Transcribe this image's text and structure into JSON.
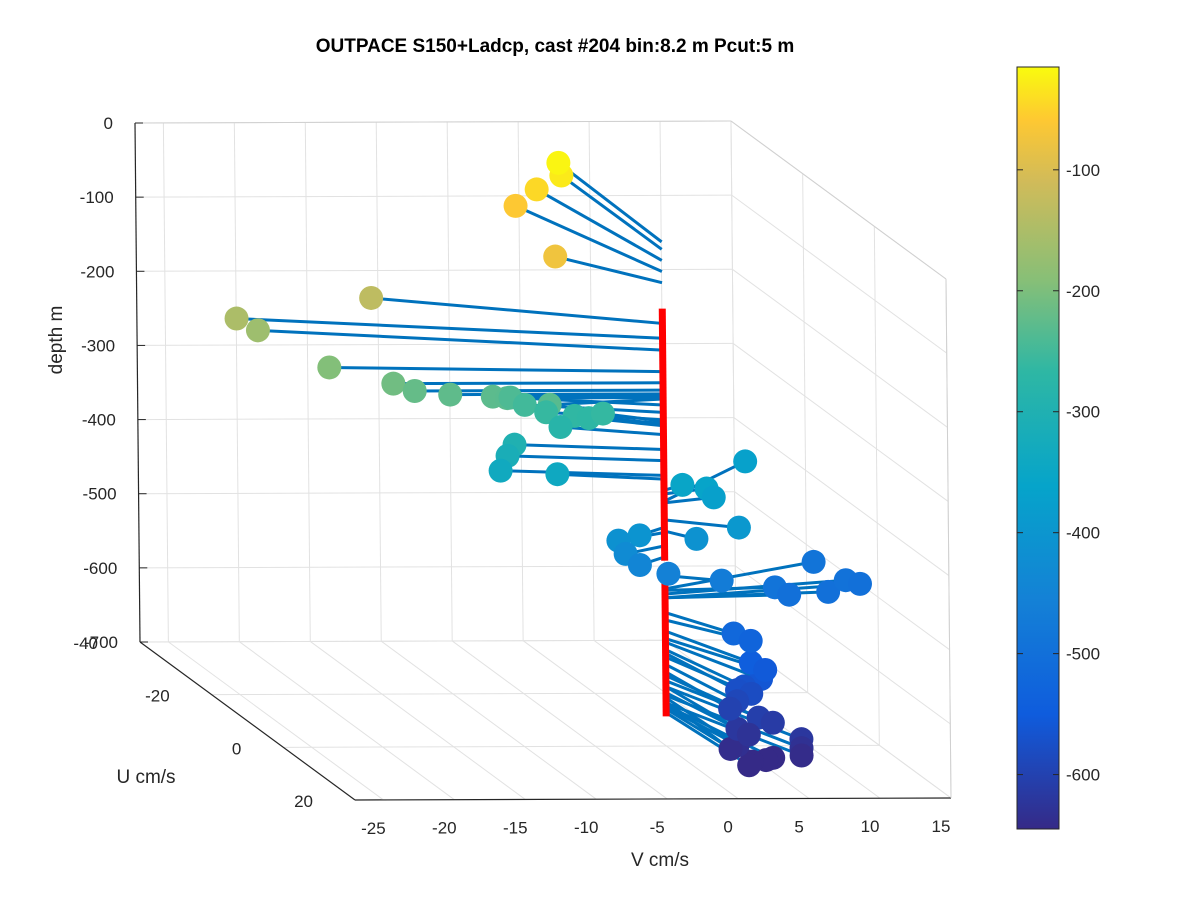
{
  "chart_data": {
    "type": "scatter",
    "projection": "3d",
    "title": "OUTPACE S150+Ladcp, cast #204 bin:8.2 m  Pcut:5 m",
    "xlabel": "V cm/s",
    "ylabel": "U cm/s",
    "zlabel": "depth m",
    "x_ticks": [
      "-25",
      "-20",
      "-15",
      "-10",
      "-5",
      "0",
      "5",
      "10",
      "15"
    ],
    "y_ticks": [
      "-40",
      "-20",
      "0",
      "20"
    ],
    "z_ticks": [
      "0",
      "-100",
      "-200",
      "-300",
      "-400",
      "-500",
      "-600",
      "-700"
    ],
    "xlim": [
      -27,
      15
    ],
    "ylim": [
      -40,
      20
    ],
    "zlim": [
      -700,
      0
    ],
    "grid": true,
    "colorbar": {
      "ticks": [
        "-100",
        "-200",
        "-300",
        "-400",
        "-500",
        "-600"
      ],
      "range": [
        -645,
        -15
      ],
      "colormap": "parula"
    },
    "profile": {
      "color": "#ff0000",
      "z": [
        -110,
        -660
      ],
      "gap": [
        -450,
        -475
      ]
    },
    "points": [
      {
        "v": 0.3,
        "u": -30,
        "z": -20
      },
      {
        "v": 0.0,
        "u": -28,
        "z": -30
      },
      {
        "v": -2.0,
        "u": -27,
        "z": -45
      },
      {
        "v": -4.0,
        "u": -25,
        "z": -60
      },
      {
        "v": -5.0,
        "u": -10,
        "z": -75
      },
      {
        "v": -18.0,
        "u": -10,
        "z": -130
      },
      {
        "v": -28.0,
        "u": -8,
        "z": -150
      },
      {
        "v": -26.5,
        "u": -8,
        "z": -166
      },
      {
        "v": -23.0,
        "u": -2,
        "z": -195
      },
      {
        "v": -19.0,
        "u": 0,
        "z": -210
      },
      {
        "v": -17.5,
        "u": 0,
        "z": -220
      },
      {
        "v": -15.0,
        "u": 0,
        "z": -225
      },
      {
        "v": -12.0,
        "u": 0,
        "z": -228
      },
      {
        "v": -11.0,
        "u": 0,
        "z": -230
      },
      {
        "v": -8.5,
        "u": 2,
        "z": -232
      },
      {
        "v": -10.0,
        "u": -3,
        "z": -240
      },
      {
        "v": -9.0,
        "u": -3,
        "z": -250
      },
      {
        "v": -7.5,
        "u": -3,
        "z": -260
      },
      {
        "v": -5.5,
        "u": -3,
        "z": -265
      },
      {
        "v": -4.5,
        "u": -3,
        "z": -268
      },
      {
        "v": -3.5,
        "u": -3,
        "z": -262
      },
      {
        "v": -6.5,
        "u": -3,
        "z": -280
      },
      {
        "v": -10.0,
        "u": -2,
        "z": -300
      },
      {
        "v": -10.5,
        "u": -2,
        "z": -315
      },
      {
        "v": -11.0,
        "u": -2,
        "z": -335
      },
      {
        "v": -7.0,
        "u": -2,
        "z": -340
      },
      {
        "v": 1.8,
        "u": -2,
        "z": -355
      },
      {
        "v": 3.5,
        "u": -2,
        "z": -360
      },
      {
        "v": 4.0,
        "u": -2,
        "z": -372
      },
      {
        "v": 9.5,
        "u": -15,
        "z": -370
      },
      {
        "v": 4.5,
        "u": 3,
        "z": -395
      },
      {
        "v": 1.5,
        "u": 3,
        "z": -410
      },
      {
        "v": -2.5,
        "u": 3,
        "z": -405
      },
      {
        "v": -4.0,
        "u": 3,
        "z": -412
      },
      {
        "v": -3.5,
        "u": 3,
        "z": -430
      },
      {
        "v": -2.5,
        "u": 3,
        "z": -445
      },
      {
        "v": -0.5,
        "u": 3,
        "z": -457
      },
      {
        "v": 3.5,
        "u": 2,
        "z": -470
      },
      {
        "v": 8.0,
        "u": -1,
        "z": -490
      },
      {
        "v": 9.0,
        "u": -1,
        "z": -500
      },
      {
        "v": 13.0,
        "u": -10,
        "z": -488
      },
      {
        "v": 14.0,
        "u": -5,
        "z": -495
      },
      {
        "v": 12.0,
        "u": -2,
        "z": -500
      },
      {
        "v": 15.0,
        "u": -5,
        "z": -500
      },
      {
        "v": 2.8,
        "u": 8,
        "z": -520
      },
      {
        "v": 4.0,
        "u": 8,
        "z": -530
      },
      {
        "v": 3.0,
        "u": 12,
        "z": -545
      },
      {
        "v": 4.0,
        "u": 12,
        "z": -555
      },
      {
        "v": 3.2,
        "u": 14,
        "z": -560
      },
      {
        "v": 2.0,
        "u": 14,
        "z": -570
      },
      {
        "v": 1.5,
        "u": 14,
        "z": -575
      },
      {
        "v": 2.5,
        "u": 14,
        "z": -580
      },
      {
        "v": 1.5,
        "u": 14,
        "z": -590
      },
      {
        "v": 1.0,
        "u": 14,
        "z": -600
      },
      {
        "v": 2.5,
        "u": 16,
        "z": -605
      },
      {
        "v": 3.5,
        "u": 16,
        "z": -612
      },
      {
        "v": 1.0,
        "u": 16,
        "z": -620
      },
      {
        "v": 1.8,
        "u": 16,
        "z": -628
      },
      {
        "v": 0.5,
        "u": 18,
        "z": -635
      },
      {
        "v": 0.0,
        "u": 18,
        "z": -640
      },
      {
        "v": 2.5,
        "u": 20,
        "z": -645
      },
      {
        "v": 2.0,
        "u": 20,
        "z": -648
      },
      {
        "v": 1.0,
        "u": 20,
        "z": -650
      },
      {
        "v": 0.8,
        "u": 20,
        "z": -655
      },
      {
        "v": 4.5,
        "u": 20,
        "z": -620
      },
      {
        "v": 4.5,
        "u": 20,
        "z": -632
      },
      {
        "v": 4.5,
        "u": 20,
        "z": -642
      }
    ]
  }
}
